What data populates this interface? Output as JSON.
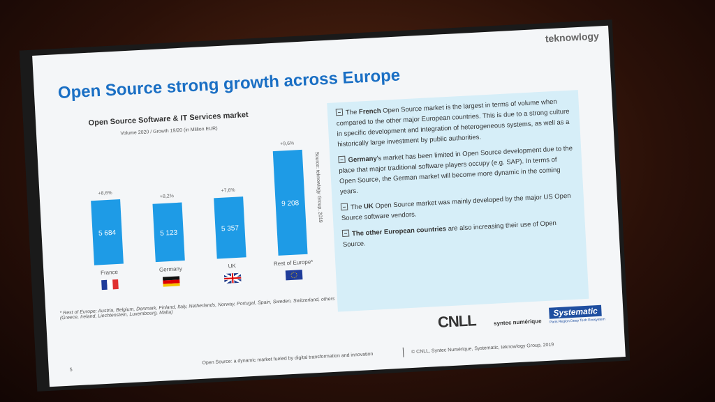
{
  "logo": "teknowlogy",
  "title": "Open Source strong growth across Europe",
  "chart_data": {
    "type": "bar",
    "title": "Open Source Software & IT Services market",
    "subtitle": "Volume 2020 / Growth 19/20 (in Million EUR)",
    "categories": [
      "France",
      "Germany",
      "UK",
      "Rest of Europe*"
    ],
    "values": [
      5684,
      5123,
      5357,
      9208
    ],
    "value_labels": [
      "5 684",
      "5 123",
      "5 357",
      "9 208"
    ],
    "annotations": [
      "+8,6%",
      "+8,2%",
      "+7,6%",
      "+9,6%"
    ],
    "color": "#1e9be6",
    "source": "Source: teknowlogy Group, 2019",
    "footnote": "* Rest of Europe: Austria, Belgium, Denmark, Finland, Italy, Netherlands, Norway, Portugal, Spain, Sweden, Switzerland, others (Greece, Ireland, Liechtenstein, Luxembourg, Malta)"
  },
  "bullets": [
    {
      "parts": [
        {
          "text": "The "
        },
        {
          "text": "French",
          "bold": true
        },
        {
          "text": " Open Source market is the largest in terms of volume when compared to the other major European countries. This is due to a strong culture in specific development and integration of heterogeneous systems, as well as a historically large investment by public authorities."
        }
      ]
    },
    {
      "parts": [
        {
          "text": "Germany",
          "bold": true
        },
        {
          "text": "'s market has been limited in Open Source development due to the place that major traditional software players occupy (e.g. SAP). In terms of Open Source, the German market will become more dynamic in the coming years."
        }
      ]
    },
    {
      "parts": [
        {
          "text": "The "
        },
        {
          "text": "UK",
          "bold": true
        },
        {
          "text": " Open Source market was mainly developed by the major US Open Source software vendors."
        }
      ]
    },
    {
      "parts": [
        {
          "text": "The other European countries",
          "bold": true
        },
        {
          "text": " are also increasing their use of Open Source."
        }
      ]
    }
  ],
  "partners": {
    "cnll": "CNLL",
    "syntec": "syntec numérique",
    "systematic": "Systematic",
    "systematic_tagline": "Paris Region Deep Tech Ecosystem"
  },
  "footer": {
    "page": "5",
    "left": "Open Source: a dynamic market fueled by digital transformation and innovation",
    "right": "© CNLL, Syntec Numérique, Systematic, teknowlogy Group, 2019"
  }
}
